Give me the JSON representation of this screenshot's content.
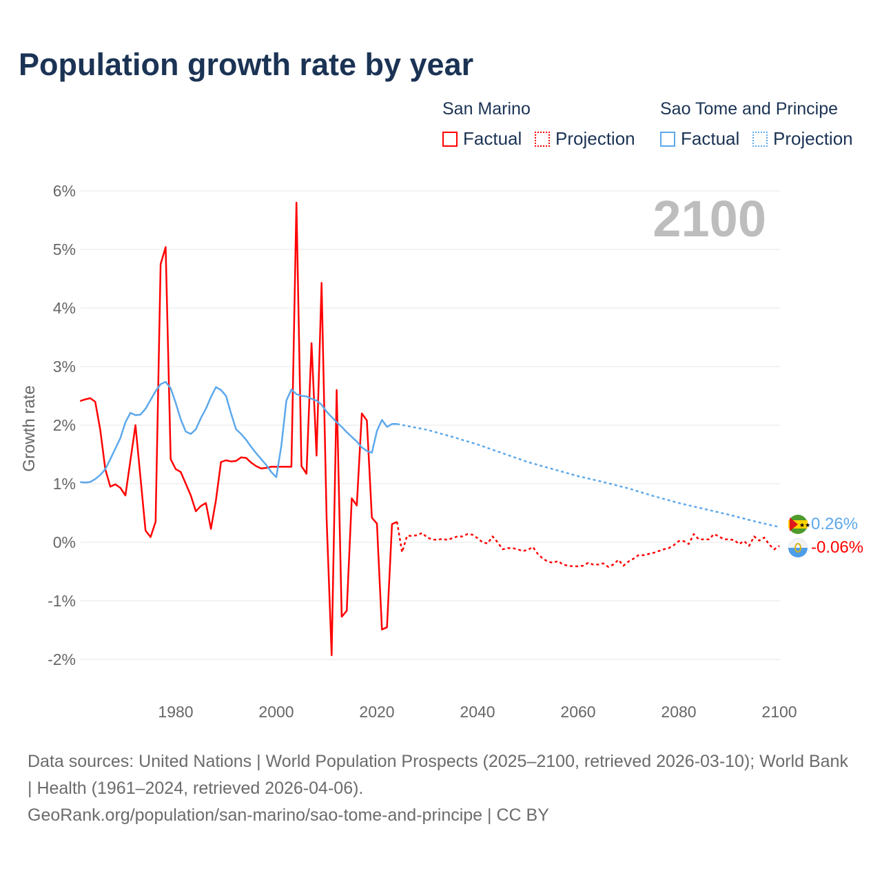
{
  "title": "Population growth rate by year",
  "legend": {
    "groups": [
      {
        "name": "San Marino",
        "factual": "Factual",
        "projection": "Projection",
        "color": "#ff0000"
      },
      {
        "name": "Sao Tome and Principe",
        "factual": "Factual",
        "projection": "Projection",
        "color": "#5ca8ec"
      }
    ]
  },
  "current_year": "2100",
  "end_labels": {
    "sao_tome": "0.26%",
    "san_marino": "-0.06%"
  },
  "footer": {
    "sources": "Data sources: United Nations | World Population Prospects (2025–2100, retrieved 2026-03-10); World Bank | Health (1961–2024, retrieved 2026-04-06).",
    "link": "GeoRank.org/population/san-marino/sao-tome-and-principe | CC BY"
  },
  "chart_data": {
    "type": "line",
    "title": "Population growth rate by year",
    "xlabel": "",
    "ylabel": "Growth rate",
    "xlim": [
      1961,
      2100
    ],
    "ylim": [
      -2,
      6
    ],
    "grid": true,
    "x_ticks": [
      "1980",
      "2000",
      "2020",
      "2040",
      "2060",
      "2080",
      "2100"
    ],
    "y_ticks": [
      "6%",
      "5%",
      "4%",
      "3%",
      "2%",
      "1%",
      "0%",
      "-1%",
      "-2%"
    ],
    "series": [
      {
        "name": "San Marino Factual",
        "color": "#ff0000",
        "style": "solid",
        "x_start": 1961,
        "values": [
          2.41,
          2.44,
          2.46,
          2.4,
          1.92,
          1.25,
          0.95,
          0.99,
          0.93,
          0.8,
          1.4,
          2.0,
          1.1,
          0.2,
          0.09,
          0.35,
          4.75,
          5.04,
          1.42,
          1.25,
          1.2,
          1.0,
          0.8,
          0.53,
          0.62,
          0.67,
          0.23,
          0.72,
          1.37,
          1.4,
          1.38,
          1.39,
          1.45,
          1.44,
          1.36,
          1.3,
          1.26,
          1.27,
          1.29,
          1.29,
          1.29,
          1.29,
          1.29,
          5.8,
          1.3,
          1.17,
          3.4,
          1.48,
          4.43,
          0.4,
          -1.93,
          2.6,
          -1.27,
          -1.17,
          0.75,
          0.63,
          2.2,
          2.08,
          0.42,
          0.32,
          -1.49,
          -1.45,
          0.31,
          0.35
        ]
      },
      {
        "name": "San Marino Projection",
        "color": "#ff0000",
        "style": "dotted",
        "x_start": 2024,
        "values": [
          0.35,
          -0.17,
          0.11,
          0.11,
          0.12,
          0.16,
          0.08,
          0.05,
          0.04,
          0.06,
          0.04,
          0.07,
          0.1,
          0.1,
          0.14,
          0.13,
          0.07,
          0.0,
          -0.02,
          0.1,
          0.0,
          -0.12,
          -0.1,
          -0.1,
          -0.12,
          -0.15,
          -0.13,
          -0.08,
          -0.2,
          -0.28,
          -0.33,
          -0.35,
          -0.32,
          -0.38,
          -0.4,
          -0.41,
          -0.41,
          -0.4,
          -0.35,
          -0.38,
          -0.38,
          -0.36,
          -0.42,
          -0.38,
          -0.3,
          -0.4,
          -0.33,
          -0.28,
          -0.22,
          -0.22,
          -0.2,
          -0.18,
          -0.15,
          -0.12,
          -0.1,
          -0.05,
          0.02,
          0.02,
          -0.03,
          0.14,
          0.05,
          0.05,
          0.05,
          0.14,
          0.1,
          0.05,
          0.05,
          0.04,
          -0.03,
          0.02,
          -0.06,
          0.1,
          0.03,
          0.08,
          -0.04,
          -0.12,
          -0.06
        ]
      },
      {
        "name": "Sao Tome and Principe Factual",
        "color": "#5ca8ec",
        "style": "solid",
        "x_start": 1961,
        "values": [
          1.03,
          1.02,
          1.03,
          1.08,
          1.15,
          1.25,
          1.42,
          1.6,
          1.78,
          2.05,
          2.21,
          2.17,
          2.18,
          2.28,
          2.43,
          2.58,
          2.7,
          2.74,
          2.63,
          2.38,
          2.1,
          1.89,
          1.85,
          1.93,
          2.12,
          2.28,
          2.48,
          2.65,
          2.6,
          2.5,
          2.2,
          1.93,
          1.85,
          1.75,
          1.63,
          1.52,
          1.42,
          1.32,
          1.2,
          1.11,
          1.65,
          2.42,
          2.61,
          2.53,
          2.5,
          2.49,
          2.45,
          2.42,
          2.35,
          2.23,
          2.14,
          2.05,
          1.97,
          1.88,
          1.8,
          1.72,
          1.62,
          1.56,
          1.53,
          1.9,
          2.09,
          1.97,
          2.02,
          2.02
        ]
      },
      {
        "name": "Sao Tome and Principe Projection",
        "color": "#5ca8ec",
        "style": "dotted",
        "x": [
          2024,
          2030,
          2035,
          2040,
          2045,
          2050,
          2055,
          2060,
          2065,
          2070,
          2075,
          2080,
          2085,
          2090,
          2095,
          2100
        ],
        "values": [
          2.02,
          1.92,
          1.8,
          1.67,
          1.52,
          1.37,
          1.25,
          1.13,
          1.03,
          0.92,
          0.79,
          0.67,
          0.57,
          0.47,
          0.36,
          0.26
        ]
      }
    ]
  }
}
